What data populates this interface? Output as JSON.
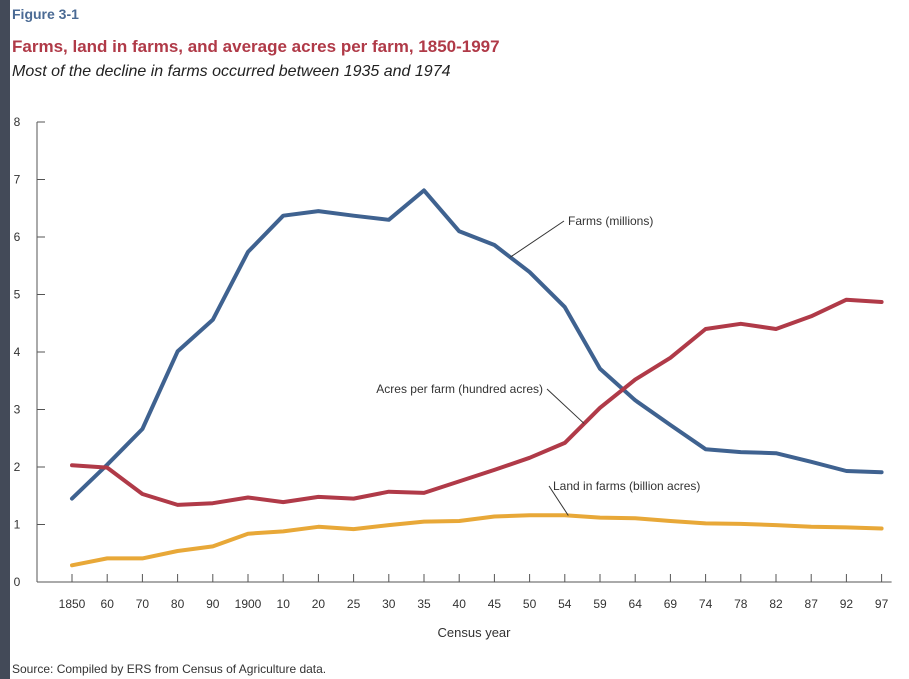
{
  "figure": {
    "label": "Figure 3-1",
    "title": "Farms, land in farms, and average acres per farm, 1850-1997",
    "subtitle": "Most of the decline in farms occurred between 1935 and 1974",
    "source": "Source: Compiled by ERS from Census of Agriculture data."
  },
  "colors": {
    "farms": "#3f6290",
    "acres": "#b03a48",
    "land": "#e8a838",
    "frame_bg": "#434a58"
  },
  "chart_data": {
    "type": "line",
    "xlabel": "Census year",
    "ylabel": "",
    "ylim": [
      0,
      8
    ],
    "yticks": [
      "0",
      "1",
      "2",
      "3",
      "4",
      "5",
      "6",
      "7",
      "8"
    ],
    "categories": [
      "1850",
      "60",
      "70",
      "80",
      "90",
      "1900",
      "10",
      "20",
      "25",
      "30",
      "35",
      "40",
      "45",
      "50",
      "54",
      "59",
      "64",
      "69",
      "74",
      "78",
      "82",
      "87",
      "92",
      "97"
    ],
    "grid": false,
    "legend": "inline labels",
    "series": [
      {
        "key": "farms",
        "name": "Farms (millions)",
        "values": [
          1.45,
          2.04,
          2.66,
          4.01,
          4.56,
          5.74,
          6.37,
          6.45,
          6.37,
          6.3,
          6.81,
          6.1,
          5.86,
          5.39,
          4.78,
          3.71,
          3.16,
          2.73,
          2.31,
          2.26,
          2.24,
          2.09,
          1.93,
          1.91
        ]
      },
      {
        "key": "acres",
        "name": "Acres per farm (hundred acres)",
        "values": [
          2.03,
          1.99,
          1.53,
          1.34,
          1.37,
          1.47,
          1.39,
          1.48,
          1.45,
          1.57,
          1.55,
          1.75,
          1.95,
          2.16,
          2.42,
          3.03,
          3.52,
          3.9,
          4.4,
          4.49,
          4.4,
          4.62,
          4.91,
          4.87
        ]
      },
      {
        "key": "land",
        "name": "Land in farms (billion acres)",
        "values": [
          0.29,
          0.41,
          0.41,
          0.54,
          0.62,
          0.84,
          0.88,
          0.96,
          0.92,
          0.99,
          1.05,
          1.06,
          1.14,
          1.16,
          1.16,
          1.12,
          1.11,
          1.06,
          1.02,
          1.01,
          0.99,
          0.96,
          0.95,
          0.93
        ]
      }
    ],
    "annotations": [
      {
        "series": "farms",
        "text": "Farms (millions)"
      },
      {
        "series": "acres",
        "text": "Acres per farm (hundred acres)"
      },
      {
        "series": "land",
        "text": "Land in farms (billion acres)"
      }
    ]
  }
}
